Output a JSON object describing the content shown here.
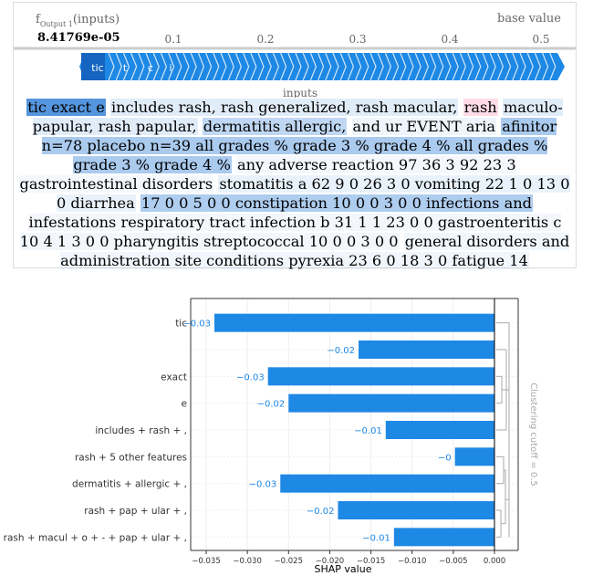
{
  "force_plot": {
    "output_label_base": "f",
    "output_label_sub": "Output 1",
    "output_label_suffix": "(inputs)",
    "output_value": "8.41769e-05",
    "base_value_label": "base value",
    "axis_label": "inputs",
    "ticks": [
      "0.1",
      "0.2",
      "0.3",
      "0.4",
      "0.5"
    ],
    "segment_labels": [
      "tic",
      "t",
      "c",
      "i"
    ],
    "colors": {
      "negative": "#1e88e5",
      "positive": "#ff0051"
    }
  },
  "text_tokens": [
    {
      "t": "tic exact e",
      "c": "#2b7bd4",
      "o": 0.8
    },
    {
      "t": "includes rash, rash generalized, rash macular,",
      "c": "#2b7bd4",
      "o": 0.14
    },
    {
      "t": "rash",
      "c": "#ff0051",
      "o": 0.14
    },
    {
      "t": "maculo-papular, rash papular,",
      "c": "#2b7bd4",
      "o": 0.14
    },
    {
      "t": "dermatitis allergic,",
      "c": "#2b7bd4",
      "o": 0.3
    },
    {
      "t": "and ur EVENT aria",
      "c": "#2b7bd4",
      "o": 0.08
    },
    {
      "t": "afinitor n=78 placebo n=39 all grades % grade 3 % grade 4 % all grades % grade 3 % grade 4 %",
      "c": "#2b7bd4",
      "o": 0.4
    },
    {
      "t": "any adverse reaction 97 36 3 92 23 3 gastrointestinal disorders",
      "c": "#2b7bd4",
      "o": 0.05
    },
    {
      "t": "stomatitis a 62 9 0 26 3 0 vomiting 22 1 0 13 0 0 diarrhea",
      "c": "#2b7bd4",
      "o": 0.1
    },
    {
      "t": "17 0 0 5 0 0 constipation 10 0 0 3 0 0 infections and",
      "c": "#2b7bd4",
      "o": 0.38
    },
    {
      "t": "infestations respiratory tract infection b 31 1 1 23 0 0 gastroenteritis c 10 4 1 3 0 0 pharyngitis streptococcal 10 0 0 3 0 0",
      "c": "#2b7bd4",
      "o": 0.06
    },
    {
      "t": "general disorders and administration site conditions pyrexia 23 6 0 18 3 0 fatigue 14",
      "c": "#2b7bd4",
      "o": 0.07
    }
  ],
  "chart_data": {
    "type": "bar",
    "orientation": "horizontal",
    "categories": [
      "tic",
      "",
      "exact",
      "e",
      "includes + rash + ,",
      "rash + 5 other features",
      "dermatitis + allergic + ,",
      "rash + pap + ular + ,",
      "rash + macul + o + - + pap + ular + ,"
    ],
    "values": [
      -0.034,
      -0.0165,
      -0.0275,
      -0.025,
      -0.0132,
      -0.0048,
      -0.026,
      -0.019,
      -0.0122
    ],
    "value_labels": [
      "−0.03",
      "−0.02",
      "−0.03",
      "−0.02",
      "−0.01",
      "−0",
      "−0.03",
      "−0.02",
      "−0.01"
    ],
    "xlabel": "SHAP value",
    "xticks": [
      "−0.035",
      "−0.030",
      "−0.025",
      "−0.020",
      "−0.015",
      "−0.010",
      "−0.005",
      "0.000"
    ],
    "xtick_values": [
      -0.035,
      -0.03,
      -0.025,
      -0.02,
      -0.015,
      -0.01,
      -0.005,
      0.0
    ],
    "xlim": [
      -0.0375,
      0.0
    ],
    "cluster_label": "Clustering cutoff = 0.5",
    "bar_color": "#1e88e5",
    "grid": true
  }
}
